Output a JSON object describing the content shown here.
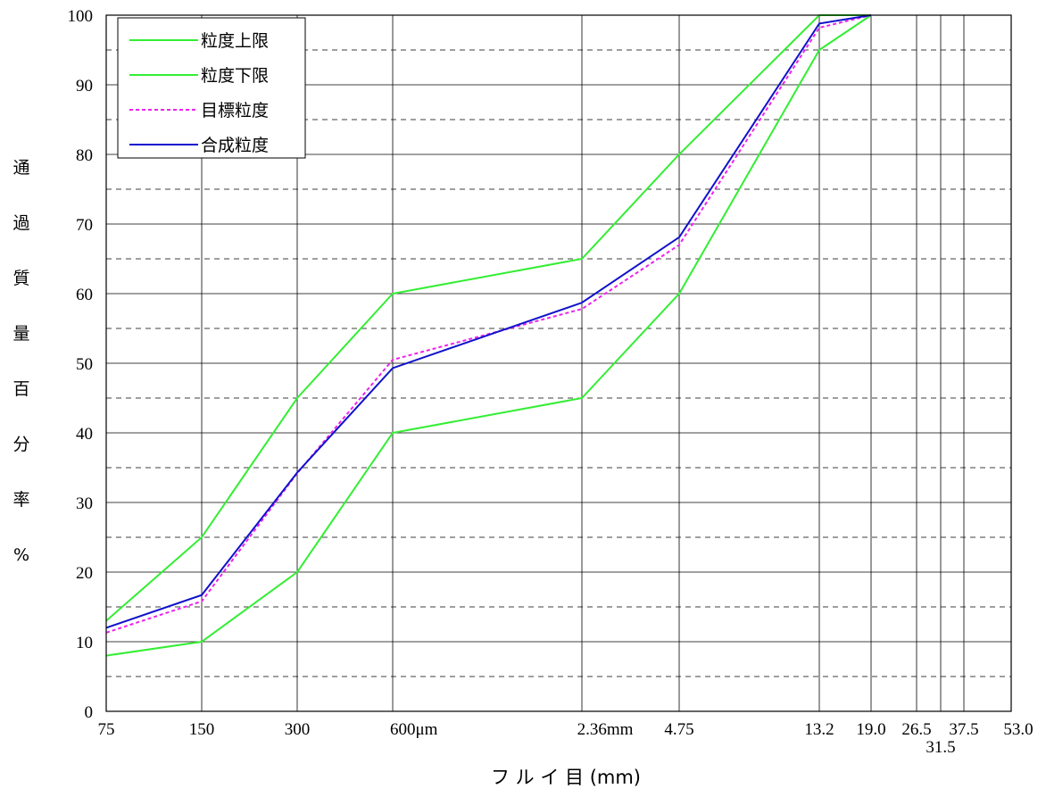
{
  "chart_data": {
    "type": "line",
    "x_scale": "log",
    "xlabel": "フ ル イ 目 (mm)",
    "ylabel": "通過質量百分率%",
    "ylim": [
      0,
      100
    ],
    "yticks": [
      0,
      10,
      20,
      30,
      40,
      50,
      60,
      70,
      80,
      90,
      100
    ],
    "grid": true,
    "legend_position": "top-left",
    "sieves_mm": [
      0.075,
      0.15,
      0.3,
      0.6,
      2.36,
      4.75,
      13.2,
      19.0,
      26.5,
      31.5,
      37.5,
      53.0
    ],
    "x_tick_labels": [
      "75",
      "150",
      "300",
      "600μm",
      "2.36mm",
      "4.75",
      "13.2",
      "19.0",
      "26.5",
      "31.5",
      "37.5",
      "53.0"
    ],
    "series": [
      {
        "name": "粒度上限",
        "color": "#33ee33",
        "dash": false,
        "x": [
          0.075,
          0.15,
          0.3,
          0.6,
          2.36,
          4.75,
          13.2,
          19.0
        ],
        "y": [
          13,
          25,
          45,
          60,
          65,
          80,
          100,
          100
        ]
      },
      {
        "name": "粒度下限",
        "color": "#33ee33",
        "dash": false,
        "x": [
          0.075,
          0.15,
          0.3,
          0.6,
          2.36,
          4.75,
          13.2,
          19.0
        ],
        "y": [
          8,
          10,
          20,
          40,
          45,
          60,
          95,
          100
        ]
      },
      {
        "name": "目標粒度",
        "color": "#ee22ee",
        "dash": true,
        "x": [
          0.075,
          0.15,
          0.3,
          0.6,
          2.36,
          4.75,
          13.2,
          19.0
        ],
        "y": [
          11.3,
          15.8,
          34.2,
          50.5,
          57.8,
          67.0,
          98.2,
          100
        ]
      },
      {
        "name": "合成粒度",
        "color": "#1111cc",
        "dash": false,
        "x": [
          0.075,
          0.15,
          0.3,
          0.6,
          2.36,
          4.75,
          13.2,
          19.0
        ],
        "y": [
          12.0,
          16.7,
          34.3,
          49.3,
          58.7,
          68.1,
          98.8,
          100
        ]
      }
    ]
  }
}
